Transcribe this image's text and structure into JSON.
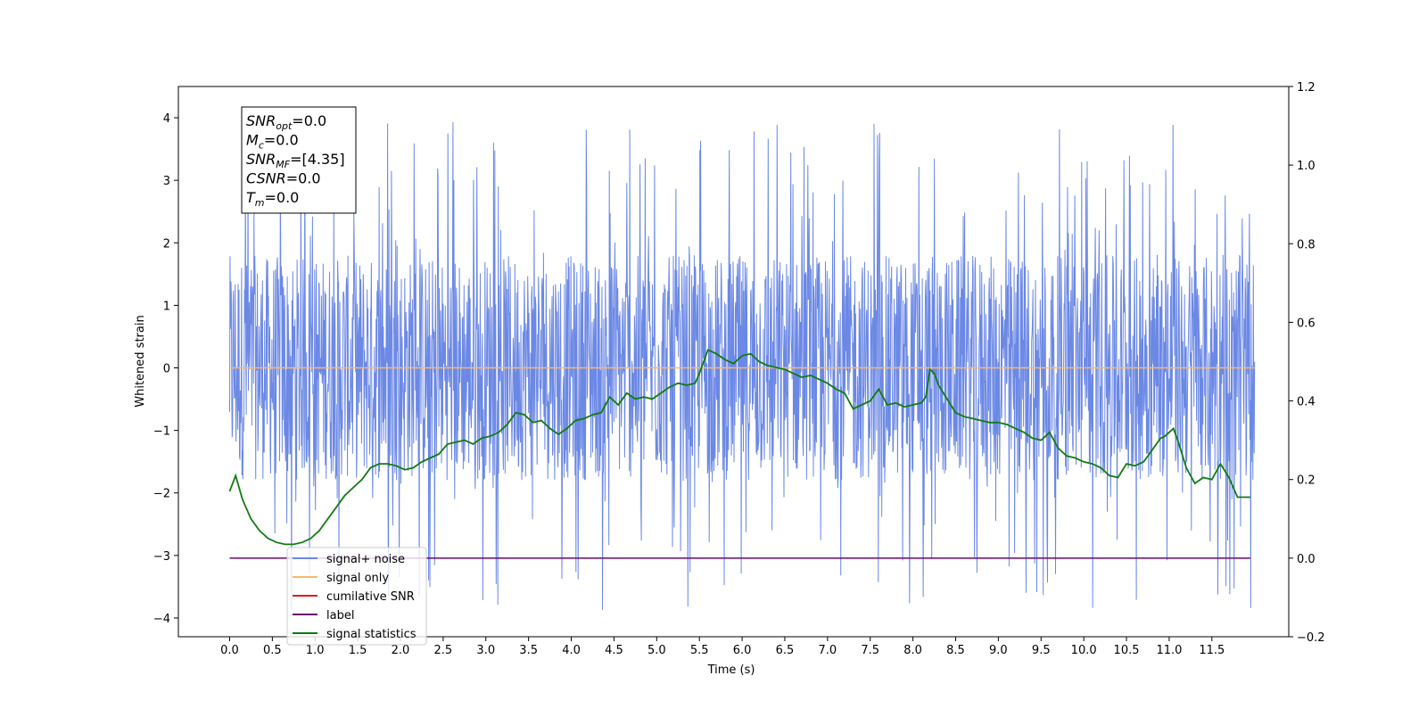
{
  "chart_data": {
    "type": "line",
    "xlabel": "Time (s)",
    "ylabel": "Whitened strain",
    "xlim": [
      -0.6,
      12.4
    ],
    "ylim_left": [
      -4.3,
      4.5
    ],
    "ylim_right": [
      -0.2,
      1.2
    ],
    "x_ticks": [
      0.0,
      0.5,
      1.0,
      1.5,
      2.0,
      2.5,
      3.0,
      3.5,
      4.0,
      4.5,
      5.0,
      5.5,
      6.0,
      6.5,
      7.0,
      7.5,
      8.0,
      8.5,
      9.0,
      9.5,
      10.0,
      10.5,
      11.0,
      11.5
    ],
    "x_tick_labels": [
      "0.0",
      "0.5",
      "1.0",
      "1.5",
      "2.0",
      "2.5",
      "3.0",
      "3.5",
      "4.0",
      "4.5",
      "5.0",
      "5.5",
      "6.0",
      "6.5",
      "7.0",
      "7.5",
      "8.0",
      "8.5",
      "9.0",
      "9.5",
      "10.0",
      "10.5",
      "11.0",
      "11.5"
    ],
    "y_left_ticks": [
      -4,
      -3,
      -2,
      -1,
      0,
      1,
      2,
      3,
      4
    ],
    "y_left_tick_labels": [
      "−4",
      "−3",
      "−2",
      "−1",
      "0",
      "1",
      "2",
      "3",
      "4"
    ],
    "y_right_ticks": [
      -0.2,
      0.0,
      0.2,
      0.4,
      0.6,
      0.8,
      1.0,
      1.2
    ],
    "y_right_tick_labels": [
      "−0.2",
      "0.0",
      "0.2",
      "0.4",
      "0.6",
      "0.8",
      "1.0",
      "1.2"
    ],
    "grid": false,
    "legend_position": "lower-left",
    "series": [
      {
        "name": "signal+ noise",
        "axis": "left",
        "color": "#6b88e5",
        "style": "dense-noise",
        "x_range": [
          0.0,
          12.0
        ],
        "band_low": -1.8,
        "band_high": 1.8,
        "y_min": -3.9,
        "y_max": 4.1
      },
      {
        "name": "signal only",
        "axis": "left",
        "color": "#f5b971",
        "x": [
          0.0,
          12.0
        ],
        "y": [
          0.0,
          0.0
        ]
      },
      {
        "name": "cumilative SNR",
        "axis": "right",
        "color": "#e41a1c",
        "x": [],
        "y": []
      },
      {
        "name": "label",
        "axis": "right",
        "color": "#6a0a6a",
        "x": [
          0.0,
          11.95
        ],
        "y": [
          0.0,
          0.0
        ]
      },
      {
        "name": "signal statistics",
        "axis": "right",
        "color": "#127a12",
        "x": [
          0.0,
          0.07,
          0.15,
          0.25,
          0.35,
          0.45,
          0.55,
          0.65,
          0.75,
          0.85,
          0.95,
          1.05,
          1.15,
          1.25,
          1.35,
          1.45,
          1.55,
          1.65,
          1.75,
          1.85,
          1.95,
          2.05,
          2.15,
          2.25,
          2.35,
          2.45,
          2.55,
          2.65,
          2.75,
          2.85,
          2.95,
          3.05,
          3.15,
          3.25,
          3.35,
          3.45,
          3.55,
          3.65,
          3.75,
          3.85,
          3.95,
          4.05,
          4.15,
          4.25,
          4.35,
          4.45,
          4.55,
          4.65,
          4.75,
          4.85,
          4.95,
          5.05,
          5.15,
          5.25,
          5.35,
          5.45,
          5.5,
          5.6,
          5.7,
          5.8,
          5.9,
          6.0,
          6.1,
          6.2,
          6.3,
          6.4,
          6.5,
          6.6,
          6.7,
          6.8,
          6.9,
          7.0,
          7.1,
          7.2,
          7.3,
          7.4,
          7.5,
          7.6,
          7.7,
          7.8,
          7.9,
          8.0,
          8.1,
          8.15,
          8.2,
          8.25,
          8.3,
          8.4,
          8.5,
          8.6,
          8.7,
          8.8,
          8.9,
          9.0,
          9.1,
          9.2,
          9.3,
          9.4,
          9.5,
          9.6,
          9.7,
          9.8,
          9.9,
          10.0,
          10.1,
          10.2,
          10.3,
          10.4,
          10.5,
          10.6,
          10.7,
          10.8,
          10.9,
          10.95,
          11.05,
          11.1,
          11.2,
          11.3,
          11.4,
          11.5,
          11.6,
          11.7,
          11.8,
          11.9,
          11.95
        ],
        "y": [
          0.17,
          0.21,
          0.15,
          0.1,
          0.07,
          0.05,
          0.04,
          0.035,
          0.035,
          0.04,
          0.05,
          0.07,
          0.1,
          0.13,
          0.16,
          0.18,
          0.2,
          0.23,
          0.24,
          0.24,
          0.235,
          0.225,
          0.23,
          0.245,
          0.255,
          0.265,
          0.29,
          0.295,
          0.3,
          0.29,
          0.305,
          0.31,
          0.32,
          0.34,
          0.37,
          0.365,
          0.345,
          0.35,
          0.33,
          0.315,
          0.33,
          0.35,
          0.355,
          0.365,
          0.37,
          0.41,
          0.39,
          0.42,
          0.405,
          0.41,
          0.405,
          0.42,
          0.435,
          0.445,
          0.44,
          0.445,
          0.47,
          0.53,
          0.52,
          0.505,
          0.495,
          0.515,
          0.52,
          0.5,
          0.49,
          0.485,
          0.48,
          0.47,
          0.46,
          0.465,
          0.455,
          0.445,
          0.43,
          0.42,
          0.38,
          0.39,
          0.4,
          0.43,
          0.39,
          0.395,
          0.385,
          0.39,
          0.395,
          0.41,
          0.48,
          0.47,
          0.44,
          0.405,
          0.37,
          0.36,
          0.355,
          0.35,
          0.345,
          0.345,
          0.34,
          0.33,
          0.32,
          0.305,
          0.3,
          0.32,
          0.28,
          0.26,
          0.255,
          0.245,
          0.24,
          0.23,
          0.21,
          0.205,
          0.24,
          0.235,
          0.245,
          0.275,
          0.305,
          0.31,
          0.33,
          0.3,
          0.23,
          0.19,
          0.205,
          0.2,
          0.24,
          0.205,
          0.155,
          0.155,
          0.155
        ]
      }
    ],
    "annotation": {
      "lines": [
        {
          "var": "SNR",
          "sub": "opt",
          "value": "=0.0"
        },
        {
          "var": "M",
          "sub": "c",
          "value": "=0.0"
        },
        {
          "var": "SNR",
          "sub": "MF",
          "value": "=[4.35]"
        },
        {
          "var": "CSNR",
          "sub": "",
          "value": "=0.0"
        },
        {
          "var": "T",
          "sub": "m",
          "value": "=0.0"
        }
      ]
    }
  }
}
